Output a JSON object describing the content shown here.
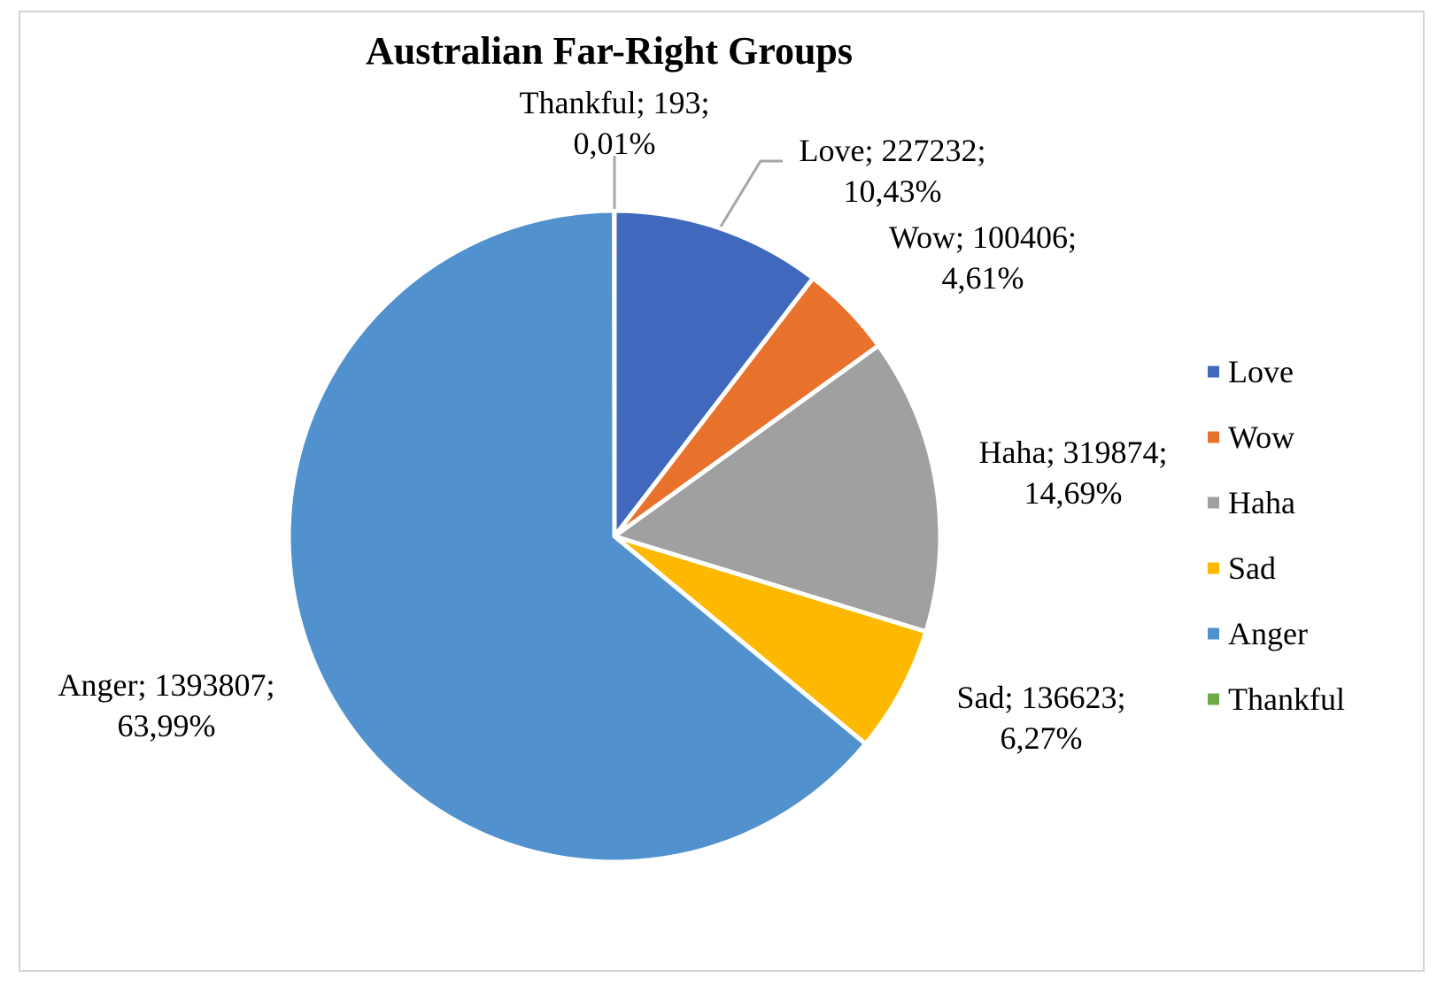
{
  "chart_data": {
    "type": "pie",
    "title": "Australian Far-Right Groups",
    "legend_position": "right",
    "start_angle_deg": 0,
    "direction": "clockwise",
    "slices": [
      {
        "name": "Love",
        "value": 227232,
        "percent_label": "10,43%",
        "label_line1": "Love; 227232;",
        "label_line2": "10,43%",
        "color": "#4068BD"
      },
      {
        "name": "Wow",
        "value": 100406,
        "percent_label": "4,61%",
        "label_line1": "Wow; 100406;",
        "label_line2": "4,61%",
        "color": "#E8712B"
      },
      {
        "name": "Haha",
        "value": 319874,
        "percent_label": "14,69%",
        "label_line1": "Haha; 319874;",
        "label_line2": "14,69%",
        "color": "#A0A0A0"
      },
      {
        "name": "Sad",
        "value": 136623,
        "percent_label": "6,27%",
        "label_line1": "Sad; 136623;",
        "label_line2": "6,27%",
        "color": "#FDB900"
      },
      {
        "name": "Anger",
        "value": 1393807,
        "percent_label": "63,99%",
        "label_line1": "Anger; 1393807;",
        "label_line2": "63,99%",
        "color": "#5191CE"
      },
      {
        "name": "Thankful",
        "value": 193,
        "percent_label": "0,01%",
        "label_line1": "Thankful; 193;",
        "label_line2": "0,01%",
        "color": "#6BAA45"
      }
    ],
    "leader_line_color": "#A6A6A6"
  }
}
